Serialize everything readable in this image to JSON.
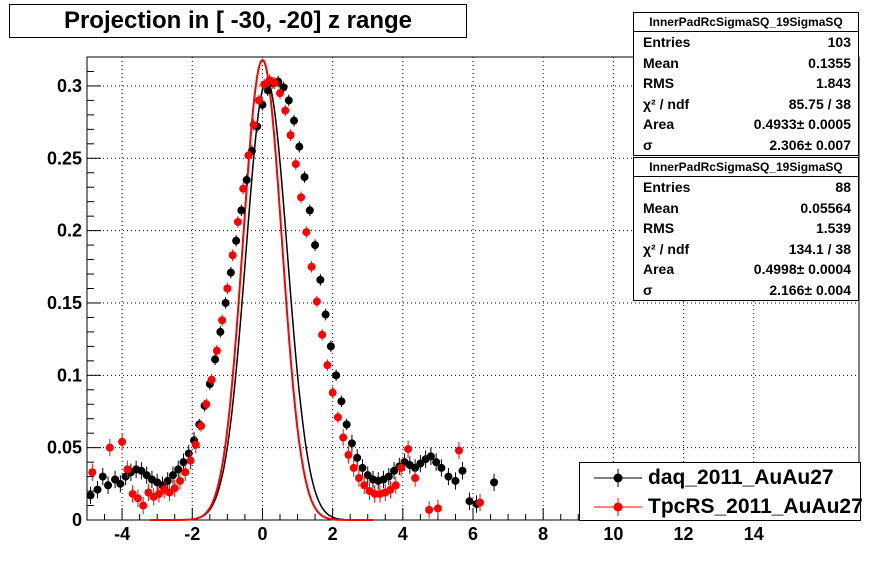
{
  "chart_data": {
    "type": "scatter",
    "title": "Projection in [ -30, -20] z range",
    "xlim": [
      -5,
      17
    ],
    "ylim": [
      0,
      0.32
    ],
    "x_ticks": [
      "-4",
      "-2",
      "0",
      "2",
      "4",
      "6",
      "8",
      "10",
      "12",
      "14"
    ],
    "x_tick_values": [
      -4,
      -2,
      0,
      2,
      4,
      6,
      8,
      10,
      12,
      14
    ],
    "y_ticks": [
      "0",
      "0.05",
      "0.1",
      "0.15",
      "0.2",
      "0.25",
      "0.3"
    ],
    "y_tick_values": [
      0,
      0.05,
      0.1,
      0.15,
      0.2,
      0.25,
      0.3
    ],
    "grid": true,
    "legend_position": "bottom-right",
    "series": [
      {
        "name": "daq_2011_AuAu27",
        "color": "#000000",
        "marker": "circle",
        "fit": {
          "area": 0.4933,
          "sigma": 2.306
        },
        "points": [
          [
            -4.9,
            0.017
          ],
          [
            -4.7,
            0.021
          ],
          [
            -4.55,
            0.03
          ],
          [
            -4.4,
            0.024
          ],
          [
            -4.2,
            0.028
          ],
          [
            -4.05,
            0.025
          ],
          [
            -3.9,
            0.03
          ],
          [
            -3.75,
            0.033
          ],
          [
            -3.6,
            0.035
          ],
          [
            -3.45,
            0.034
          ],
          [
            -3.3,
            0.031
          ],
          [
            -3.15,
            0.028
          ],
          [
            -3.0,
            0.026
          ],
          [
            -2.85,
            0.024
          ],
          [
            -2.7,
            0.027
          ],
          [
            -2.55,
            0.031
          ],
          [
            -2.4,
            0.035
          ],
          [
            -2.25,
            0.04
          ],
          [
            -2.1,
            0.046
          ],
          [
            -1.95,
            0.055
          ],
          [
            -1.8,
            0.066
          ],
          [
            -1.65,
            0.079
          ],
          [
            -1.5,
            0.094
          ],
          [
            -1.35,
            0.111
          ],
          [
            -1.2,
            0.13
          ],
          [
            -1.05,
            0.15
          ],
          [
            -0.9,
            0.171
          ],
          [
            -0.75,
            0.193
          ],
          [
            -0.6,
            0.214
          ],
          [
            -0.45,
            0.235
          ],
          [
            -0.3,
            0.255
          ],
          [
            -0.15,
            0.272
          ],
          [
            0.0,
            0.287
          ],
          [
            0.15,
            0.297
          ],
          [
            0.3,
            0.302
          ],
          [
            0.45,
            0.303
          ],
          [
            0.6,
            0.299
          ],
          [
            0.75,
            0.29
          ],
          [
            0.9,
            0.276
          ],
          [
            1.05,
            0.258
          ],
          [
            1.2,
            0.237
          ],
          [
            1.35,
            0.214
          ],
          [
            1.5,
            0.19
          ],
          [
            1.65,
            0.166
          ],
          [
            1.8,
            0.142
          ],
          [
            1.95,
            0.12
          ],
          [
            2.1,
            0.1
          ],
          [
            2.25,
            0.082
          ],
          [
            2.4,
            0.066
          ],
          [
            2.55,
            0.053
          ],
          [
            2.7,
            0.043
          ],
          [
            2.85,
            0.036
          ],
          [
            3.0,
            0.031
          ],
          [
            3.15,
            0.028
          ],
          [
            3.3,
            0.027
          ],
          [
            3.45,
            0.028
          ],
          [
            3.6,
            0.03
          ],
          [
            3.75,
            0.034
          ],
          [
            3.9,
            0.037
          ],
          [
            4.05,
            0.04
          ],
          [
            4.2,
            0.038
          ],
          [
            4.35,
            0.036
          ],
          [
            4.5,
            0.039
          ],
          [
            4.65,
            0.042
          ],
          [
            4.8,
            0.044
          ],
          [
            4.95,
            0.04
          ],
          [
            5.1,
            0.036
          ],
          [
            5.3,
            0.03
          ],
          [
            5.5,
            0.027
          ],
          [
            5.7,
            0.034
          ],
          [
            5.9,
            0.013
          ],
          [
            6.1,
            0.011
          ],
          [
            6.6,
            0.026
          ]
        ]
      },
      {
        "name": "TpcRS_2011_AuAu27",
        "color": "#ff0000",
        "marker": "circle",
        "fit": {
          "area": 0.4998,
          "sigma": 2.166
        },
        "points": [
          [
            -4.85,
            0.033
          ],
          [
            -4.35,
            0.05
          ],
          [
            -4.0,
            0.054
          ],
          [
            -3.85,
            0.035
          ],
          [
            -3.7,
            0.018
          ],
          [
            -3.55,
            0.015
          ],
          [
            -3.4,
            0.01
          ],
          [
            -3.25,
            0.019
          ],
          [
            -3.1,
            0.016
          ],
          [
            -2.95,
            0.018
          ],
          [
            -2.8,
            0.021
          ],
          [
            -2.65,
            0.019
          ],
          [
            -2.5,
            0.022
          ],
          [
            -2.35,
            0.027
          ],
          [
            -2.2,
            0.033
          ],
          [
            -2.05,
            0.041
          ],
          [
            -1.9,
            0.052
          ],
          [
            -1.75,
            0.065
          ],
          [
            -1.6,
            0.08
          ],
          [
            -1.45,
            0.097
          ],
          [
            -1.3,
            0.117
          ],
          [
            -1.15,
            0.138
          ],
          [
            -1.0,
            0.16
          ],
          [
            -0.85,
            0.183
          ],
          [
            -0.7,
            0.206
          ],
          [
            -0.55,
            0.229
          ],
          [
            -0.4,
            0.252
          ],
          [
            -0.25,
            0.273
          ],
          [
            -0.1,
            0.29
          ],
          [
            0.05,
            0.301
          ],
          [
            0.2,
            0.304
          ],
          [
            0.35,
            0.302
          ],
          [
            0.5,
            0.295
          ],
          [
            0.65,
            0.283
          ],
          [
            0.8,
            0.266
          ],
          [
            0.95,
            0.246
          ],
          [
            1.1,
            0.223
          ],
          [
            1.25,
            0.199
          ],
          [
            1.4,
            0.175
          ],
          [
            1.55,
            0.151
          ],
          [
            1.7,
            0.128
          ],
          [
            1.85,
            0.107
          ],
          [
            2.0,
            0.088
          ],
          [
            2.15,
            0.071
          ],
          [
            2.3,
            0.057
          ],
          [
            2.45,
            0.045
          ],
          [
            2.6,
            0.036
          ],
          [
            2.75,
            0.029
          ],
          [
            2.9,
            0.024
          ],
          [
            3.05,
            0.02
          ],
          [
            3.2,
            0.018
          ],
          [
            3.35,
            0.018
          ],
          [
            3.5,
            0.019
          ],
          [
            3.65,
            0.021
          ],
          [
            3.8,
            0.024
          ],
          [
            3.95,
            0.036
          ],
          [
            4.15,
            0.049
          ],
          [
            4.35,
            0.029
          ],
          [
            4.75,
            0.007
          ],
          [
            5.0,
            0.008
          ],
          [
            5.6,
            0.048
          ],
          [
            6.2,
            0.012
          ]
        ]
      }
    ]
  },
  "stats_boxes": [
    {
      "title": "InnerPadRcSigmaSQ_19SigmaSQ",
      "rows": [
        {
          "key": "Entries",
          "value": "103"
        },
        {
          "key": "Mean",
          "value": "0.1355"
        },
        {
          "key": "RMS",
          "value": "1.843"
        },
        {
          "key": "χ² / ndf",
          "value": "85.75 / 38"
        },
        {
          "key": "Area",
          "value": "0.4933± 0.0005"
        },
        {
          "key": "σ",
          "value": "2.306± 0.007"
        }
      ]
    },
    {
      "title": "InnerPadRcSigmaSQ_19SigmaSQ",
      "rows": [
        {
          "key": "Entries",
          "value": "88"
        },
        {
          "key": "Mean",
          "value": "0.05564"
        },
        {
          "key": "RMS",
          "value": "1.539"
        },
        {
          "key": "χ² / ndf",
          "value": "134.1 / 38"
        },
        {
          "key": "Area",
          "value": "0.4998± 0.0004"
        },
        {
          "key": "σ",
          "value": "2.166± 0.004"
        }
      ]
    }
  ],
  "legend": [
    {
      "label": "daq_2011_AuAu27",
      "color": "#000000"
    },
    {
      "label": "TpcRS_2011_AuAu27",
      "color": "#ff0000"
    }
  ]
}
